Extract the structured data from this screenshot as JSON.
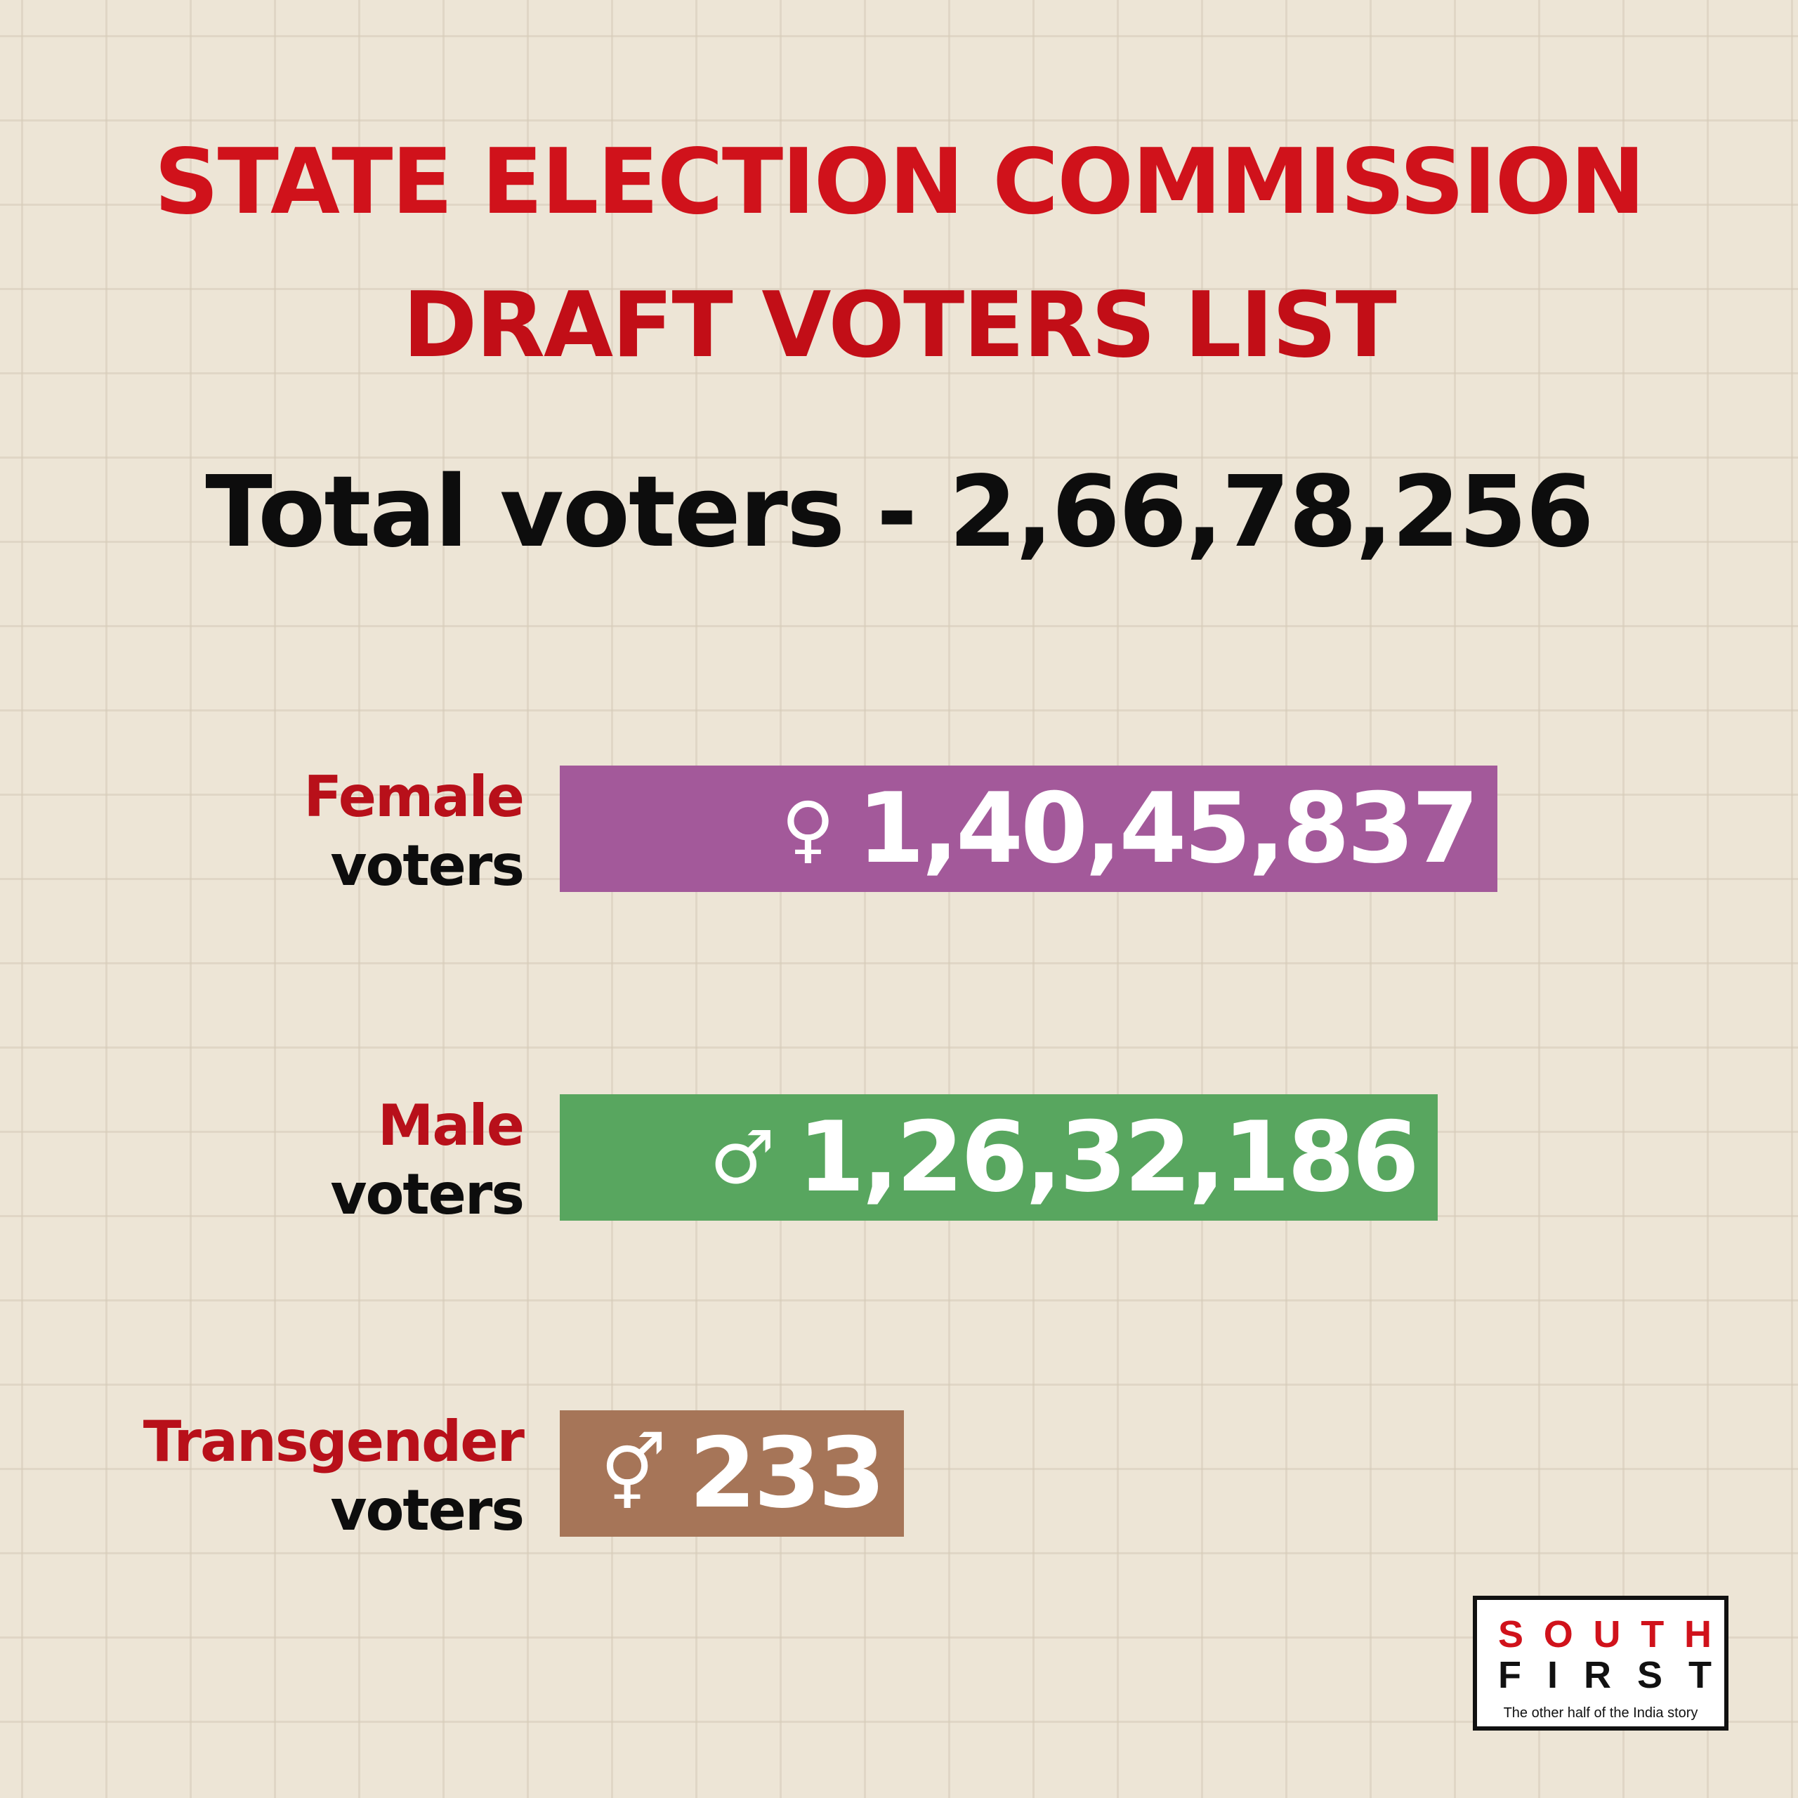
{
  "title": {
    "line1": "STATE ELECTION COMMISSION",
    "line2": "DRAFT VOTERS LIST"
  },
  "total_label": "Total voters - 2,66,78,256",
  "chart_data": {
    "type": "bar",
    "categories": [
      "Female voters",
      "Male voters",
      "Transgender voters"
    ],
    "values": [
      14045837,
      12632186,
      233
    ],
    "display_values": [
      "1,40,45,837",
      "1,26,32,186",
      "233"
    ],
    "symbols": [
      "♀",
      "♂",
      "⚥"
    ],
    "colors": [
      "#a3599a",
      "#58a65f",
      "#a67558"
    ],
    "label_top": [
      "Female",
      "Male",
      "Transgender"
    ],
    "label_bottom": [
      "voters",
      "voters",
      "voters"
    ],
    "total": 26678256,
    "orientation": "horizontal"
  },
  "logo": {
    "letters_top": [
      "S",
      "O",
      "U",
      "T",
      "H"
    ],
    "letters_bottom": [
      "F",
      "I",
      "R",
      "S",
      "T"
    ],
    "tagline": "The other half of the India story"
  }
}
